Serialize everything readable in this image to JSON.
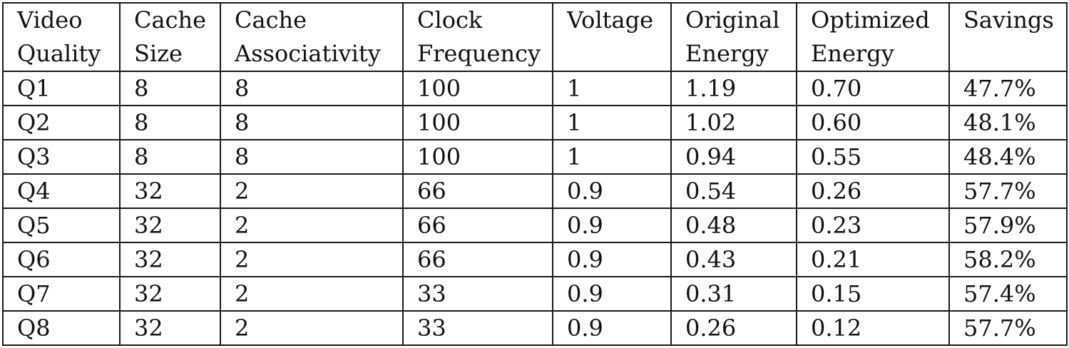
{
  "table": {
    "columns": [
      {
        "line1": "Video",
        "line2": "Quality"
      },
      {
        "line1": "Cache",
        "line2": "Size"
      },
      {
        "line1": "Cache",
        "line2": "Associativity"
      },
      {
        "line1": "Clock",
        "line2": "Frequency"
      },
      {
        "line1": "Voltage",
        "line2": ""
      },
      {
        "line1": "Original",
        "line2": "Energy"
      },
      {
        "line1": "Optimized",
        "line2": "Energy"
      },
      {
        "line1": "Savings",
        "line2": ""
      }
    ],
    "rows": [
      [
        "Q1",
        "8",
        "8",
        "100",
        "1",
        "1.19",
        "0.70",
        "47.7%"
      ],
      [
        "Q2",
        "8",
        "8",
        "100",
        "1",
        "1.02",
        "0.60",
        "48.1%"
      ],
      [
        "Q3",
        "8",
        "8",
        "100",
        "1",
        "0.94",
        "0.55",
        "48.4%"
      ],
      [
        "Q4",
        "32",
        "2",
        "66",
        "0.9",
        "0.54",
        "0.26",
        "57.7%"
      ],
      [
        "Q5",
        "32",
        "2",
        "66",
        "0.9",
        "0.48",
        "0.23",
        "57.9%"
      ],
      [
        "Q6",
        "32",
        "2",
        "66",
        "0.9",
        "0.43",
        "0.21",
        "58.2%"
      ],
      [
        "Q7",
        "32",
        "2",
        "33",
        "0.9",
        "0.31",
        "0.15",
        "57.4%"
      ],
      [
        "Q8",
        "32",
        "2",
        "33",
        "0.9",
        "0.26",
        "0.12",
        "57.7%"
      ]
    ]
  }
}
